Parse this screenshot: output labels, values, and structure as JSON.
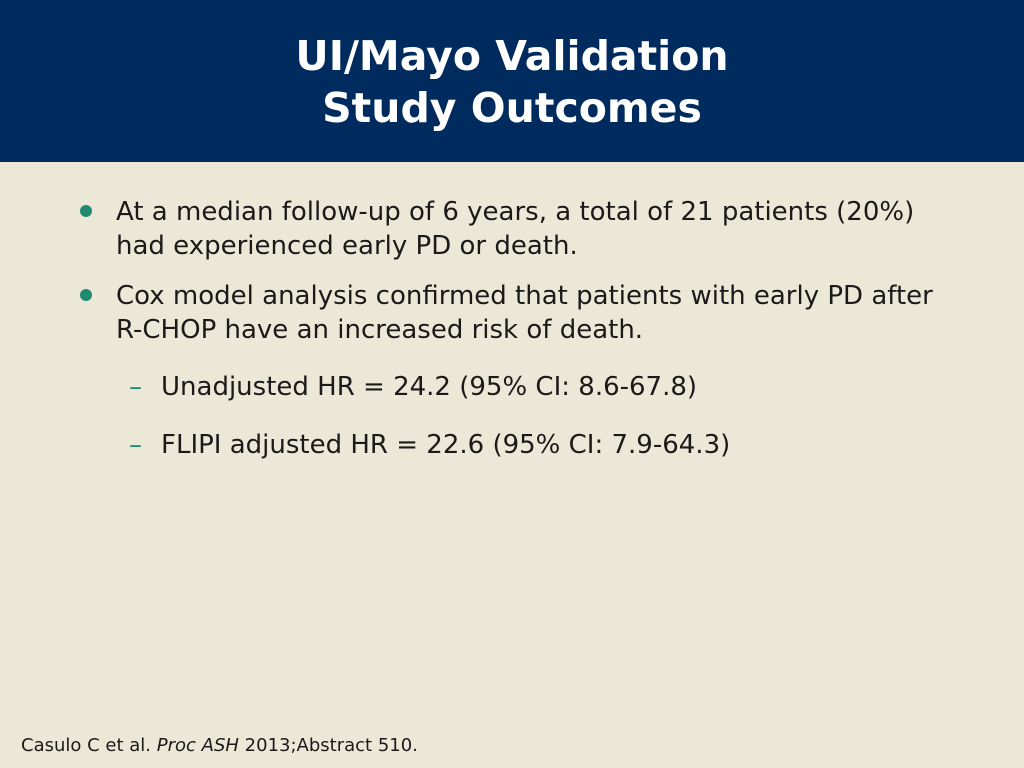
{
  "slide": {
    "title_line1": "UI/Mayo Validation",
    "title_line2": "Study Outcomes",
    "bullets": [
      {
        "text": "At a median follow-up of 6 years, a total of 21 patients (20%) had experienced early PD or death."
      },
      {
        "text": "Cox model analysis confirmed that patients with early PD after R-CHOP have an increased risk of death."
      }
    ],
    "sub_bullets": [
      {
        "marker": "–",
        "text": "Unadjusted HR = 24.2 (95% CI: 8.6-67.8)"
      },
      {
        "marker": "–",
        "text": "FLIPI adjusted HR = 22.6 (95% CI: 7.9-64.3)"
      }
    ],
    "citation": {
      "author": "Casulo C et al.",
      "journal": "Proc ASH",
      "details": "2013;Abstract 510."
    }
  },
  "colors": {
    "header_bg": "#002b5e",
    "slide_bg": "#ece8d7",
    "accent": "#1f8a70",
    "title_text": "#ffffff"
  }
}
